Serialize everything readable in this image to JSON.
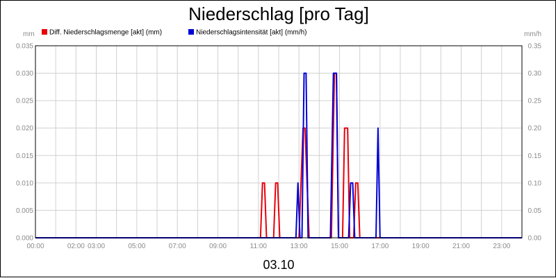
{
  "chart_data": {
    "type": "line",
    "title": "Niederschlag [pro Tag]",
    "date_label": "03.10",
    "y_left_unit": "mm",
    "y_right_unit": "mm/h",
    "y_left_lim": [
      0,
      0.035
    ],
    "y_right_lim": [
      0,
      0.35
    ],
    "y_left_ticks": [
      "0.000",
      "0.005",
      "0.010",
      "0.015",
      "0.020",
      "0.025",
      "0.030",
      "0.035"
    ],
    "y_right_ticks": [
      "0.00",
      "0.05",
      "0.10",
      "0.15",
      "0.20",
      "0.25",
      "0.30",
      "0.35"
    ],
    "x_lim": [
      0,
      24
    ],
    "x_ticks": [
      {
        "t": 0,
        "label": "00:00"
      },
      {
        "t": 2,
        "label": "02:00"
      },
      {
        "t": 3,
        "label": "03:00"
      },
      {
        "t": 5,
        "label": "05:00"
      },
      {
        "t": 7,
        "label": "07:00"
      },
      {
        "t": 9,
        "label": "09:00"
      },
      {
        "t": 11,
        "label": "11:00"
      },
      {
        "t": 13,
        "label": "13:00"
      },
      {
        "t": 15,
        "label": "15:00"
      },
      {
        "t": 17,
        "label": "17:00"
      },
      {
        "t": 19,
        "label": "19:00"
      },
      {
        "t": 21,
        "label": "21:00"
      },
      {
        "t": 23,
        "label": "23:00"
      }
    ],
    "grid": true,
    "legend_position": "top-left",
    "series": [
      {
        "name": "Diff. Niederschlagsmenge [akt] (mm)",
        "axis": "left",
        "color": "#e8000b",
        "points": [
          [
            0,
            0
          ],
          [
            11.1,
            0
          ],
          [
            11.2,
            0.01
          ],
          [
            11.3,
            0.01
          ],
          [
            11.4,
            0
          ],
          [
            11.75,
            0
          ],
          [
            11.85,
            0.01
          ],
          [
            11.95,
            0.01
          ],
          [
            12.05,
            0
          ],
          [
            13.0,
            0
          ],
          [
            13.1,
            0.01
          ],
          [
            13.2,
            0.02
          ],
          [
            13.3,
            0.02
          ],
          [
            13.4,
            0.01
          ],
          [
            13.5,
            0
          ],
          [
            14.6,
            0
          ],
          [
            14.75,
            0.03
          ],
          [
            14.85,
            0.03
          ],
          [
            14.95,
            0
          ],
          [
            15.15,
            0
          ],
          [
            15.25,
            0.02
          ],
          [
            15.4,
            0.02
          ],
          [
            15.5,
            0
          ],
          [
            15.7,
            0
          ],
          [
            15.8,
            0.01
          ],
          [
            15.9,
            0.01
          ],
          [
            16.0,
            0
          ],
          [
            24,
            0
          ]
        ]
      },
      {
        "name": "Niederschlagsintensität [akt] (mm/h)",
        "axis": "right",
        "color": "#0000d8",
        "points": [
          [
            0,
            0
          ],
          [
            12.85,
            0
          ],
          [
            12.95,
            0.1
          ],
          [
            13.05,
            0
          ],
          [
            13.15,
            0
          ],
          [
            13.25,
            0.3
          ],
          [
            13.35,
            0.3
          ],
          [
            13.45,
            0
          ],
          [
            14.55,
            0
          ],
          [
            14.7,
            0.3
          ],
          [
            14.85,
            0.3
          ],
          [
            14.95,
            0
          ],
          [
            15.45,
            0
          ],
          [
            15.55,
            0.1
          ],
          [
            15.65,
            0.1
          ],
          [
            15.75,
            0
          ],
          [
            16.8,
            0
          ],
          [
            16.9,
            0.2
          ],
          [
            17.0,
            0
          ],
          [
            24,
            0
          ]
        ]
      }
    ]
  }
}
